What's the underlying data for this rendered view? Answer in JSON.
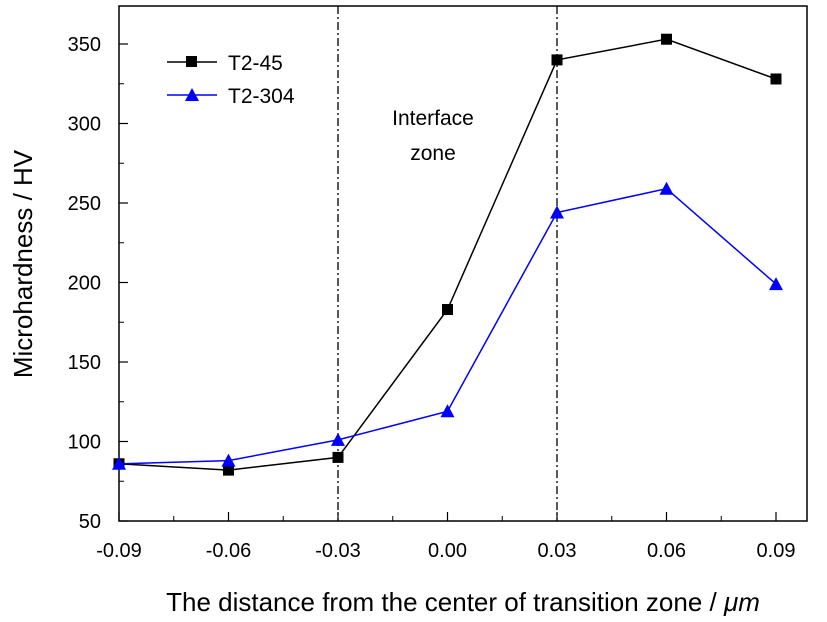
{
  "chart_data": {
    "type": "line",
    "xlabel": "The distance from the center of transition zone / ",
    "xlabel_unit": "μm",
    "ylabel": "Microhardness / HV",
    "xlim": [
      -0.09,
      0.09
    ],
    "ylim": [
      50,
      370
    ],
    "x_ticks": [
      "-0.09",
      "-0.06",
      "-0.03",
      "0.00",
      "0.03",
      "0.06",
      "0.09"
    ],
    "y_ticks": [
      "50",
      "100",
      "150",
      "200",
      "250",
      "300",
      "350"
    ],
    "x": [
      -0.09,
      -0.06,
      -0.03,
      0.0,
      0.03,
      0.06,
      0.09
    ],
    "series": [
      {
        "name": "T2-45",
        "values": [
          86,
          82,
          90,
          183,
          340,
          353,
          328
        ],
        "color": "#000000",
        "marker": "square"
      },
      {
        "name": "T2-304",
        "values": [
          86,
          88,
          101,
          119,
          244,
          259,
          199
        ],
        "color": "#0000ff",
        "marker": "triangle"
      }
    ],
    "reference_lines_x": [
      -0.03,
      0.03
    ],
    "annotation": [
      "Interface",
      "zone"
    ],
    "legend_position": "top-left",
    "grid": false
  }
}
